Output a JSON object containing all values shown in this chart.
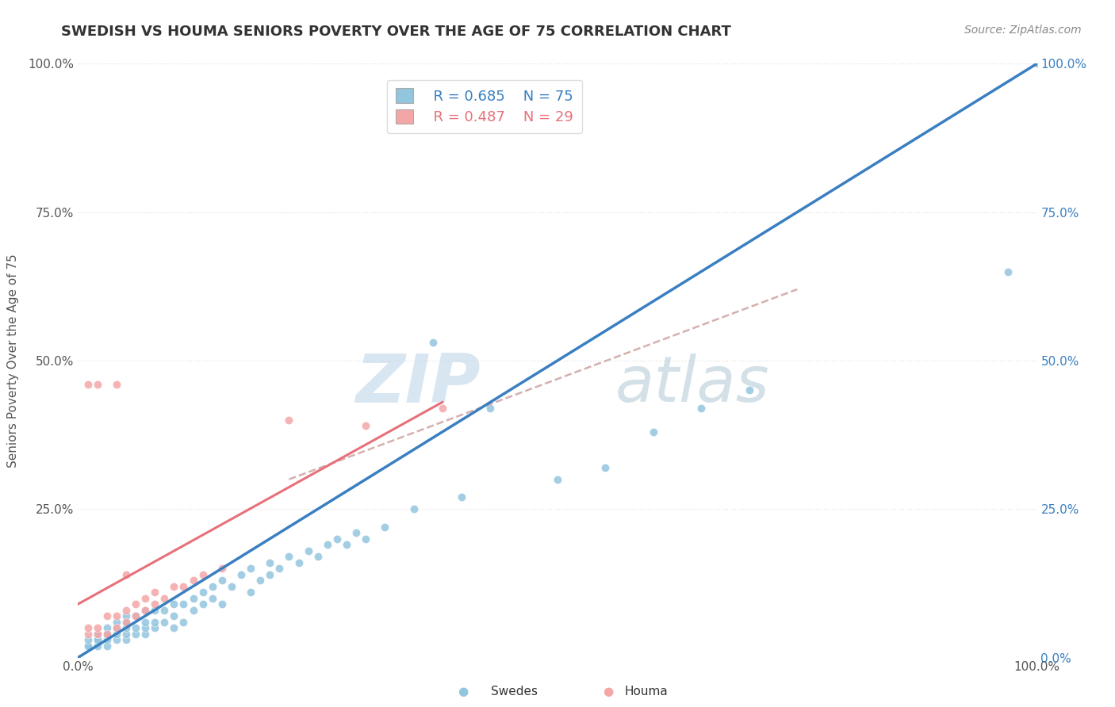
{
  "title": "SWEDISH VS HOUMA SENIORS POVERTY OVER THE AGE OF 75 CORRELATION CHART",
  "source": "Source: ZipAtlas.com",
  "ylabel": "Seniors Poverty Over the Age of 75",
  "xlim": [
    0,
    1.0
  ],
  "ylim": [
    0,
    1.0
  ],
  "swedes_color": "#92c5de",
  "houma_color": "#f4a6a6",
  "swedes_line_color": "#3a7fc1",
  "houma_line_color": "#e8707a",
  "houma_dashed_color": "#d4b0b0",
  "legend_r_swedes": "R = 0.685",
  "legend_n_swedes": "N = 75",
  "legend_r_houma": "R = 0.487",
  "legend_n_houma": "N = 29",
  "swedes_x": [
    0.01,
    0.01,
    0.01,
    0.02,
    0.02,
    0.02,
    0.02,
    0.03,
    0.03,
    0.03,
    0.03,
    0.03,
    0.04,
    0.04,
    0.04,
    0.04,
    0.05,
    0.05,
    0.05,
    0.05,
    0.05,
    0.06,
    0.06,
    0.06,
    0.07,
    0.07,
    0.07,
    0.07,
    0.08,
    0.08,
    0.08,
    0.09,
    0.09,
    0.1,
    0.1,
    0.1,
    0.11,
    0.11,
    0.12,
    0.12,
    0.13,
    0.13,
    0.14,
    0.14,
    0.15,
    0.15,
    0.16,
    0.17,
    0.18,
    0.18,
    0.19,
    0.2,
    0.2,
    0.21,
    0.22,
    0.23,
    0.24,
    0.25,
    0.26,
    0.27,
    0.28,
    0.29,
    0.3,
    0.32,
    0.35,
    0.37,
    0.4,
    0.43,
    0.5,
    0.55,
    0.6,
    0.65,
    0.7,
    0.97,
    1.0
  ],
  "swedes_y": [
    0.02,
    0.02,
    0.03,
    0.02,
    0.03,
    0.03,
    0.04,
    0.02,
    0.03,
    0.04,
    0.04,
    0.05,
    0.03,
    0.04,
    0.05,
    0.06,
    0.03,
    0.04,
    0.05,
    0.06,
    0.07,
    0.04,
    0.05,
    0.07,
    0.04,
    0.05,
    0.06,
    0.08,
    0.05,
    0.06,
    0.08,
    0.06,
    0.08,
    0.05,
    0.07,
    0.09,
    0.06,
    0.09,
    0.08,
    0.1,
    0.09,
    0.11,
    0.1,
    0.12,
    0.09,
    0.13,
    0.12,
    0.14,
    0.11,
    0.15,
    0.13,
    0.14,
    0.16,
    0.15,
    0.17,
    0.16,
    0.18,
    0.17,
    0.19,
    0.2,
    0.19,
    0.21,
    0.2,
    0.22,
    0.25,
    0.53,
    0.27,
    0.42,
    0.3,
    0.32,
    0.38,
    0.42,
    0.45,
    0.65,
    1.0
  ],
  "houma_x": [
    0.01,
    0.01,
    0.01,
    0.02,
    0.02,
    0.02,
    0.03,
    0.03,
    0.04,
    0.04,
    0.04,
    0.05,
    0.05,
    0.05,
    0.06,
    0.06,
    0.07,
    0.07,
    0.08,
    0.08,
    0.09,
    0.1,
    0.11,
    0.12,
    0.13,
    0.15,
    0.22,
    0.3,
    0.38
  ],
  "houma_y": [
    0.04,
    0.05,
    0.46,
    0.04,
    0.05,
    0.46,
    0.04,
    0.07,
    0.05,
    0.07,
    0.46,
    0.06,
    0.08,
    0.14,
    0.07,
    0.09,
    0.08,
    0.1,
    0.09,
    0.11,
    0.1,
    0.12,
    0.12,
    0.13,
    0.14,
    0.15,
    0.4,
    0.39,
    0.42
  ],
  "swedes_line_x": [
    0.0,
    1.0
  ],
  "swedes_line_y": [
    0.0,
    1.0
  ],
  "houma_solid_line_x": [
    0.0,
    0.38
  ],
  "houma_solid_line_y": [
    0.09,
    0.43
  ],
  "houma_dashed_line_x": [
    0.22,
    0.75
  ],
  "houma_dashed_line_y": [
    0.3,
    0.62
  ]
}
